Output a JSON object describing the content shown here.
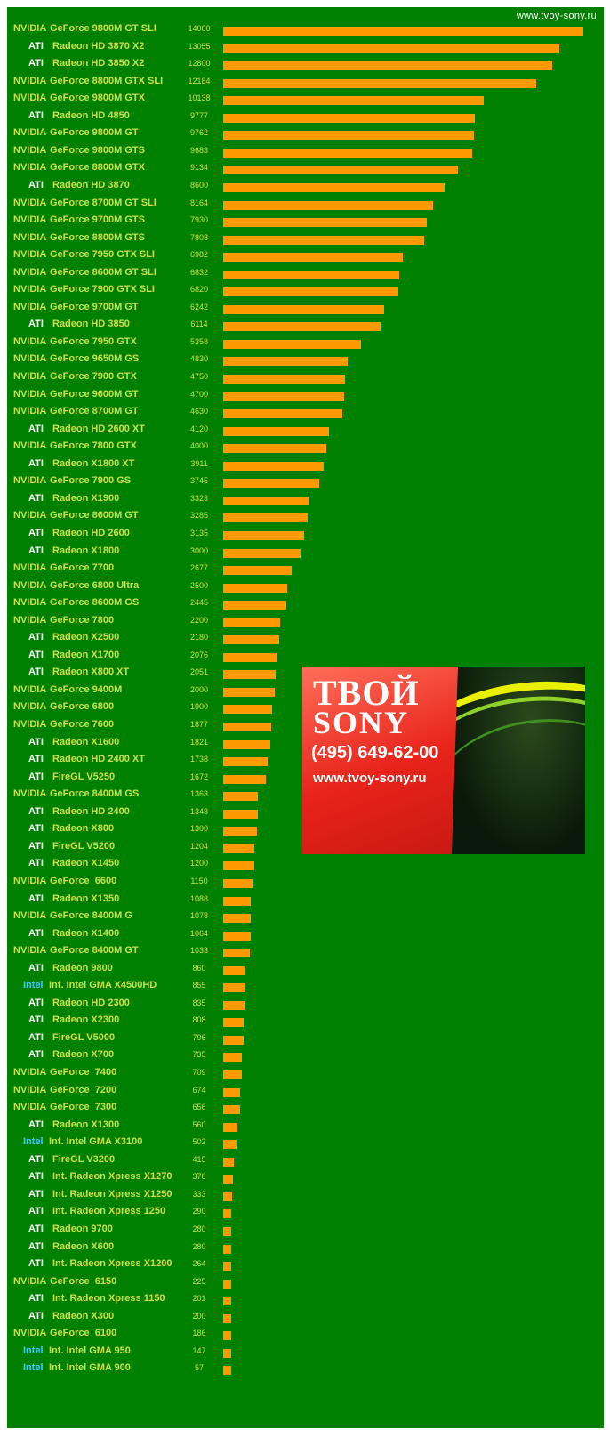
{
  "header": {
    "site": "www.tvoy-sony.ru"
  },
  "ad": {
    "brand_line1": "ТВОЙ",
    "brand_line2": "SONY",
    "phone": "(495) 649-62-00",
    "website": "www.tvoy-sony.ru"
  },
  "colors": {
    "background": "#008000",
    "bar": "#ff9900",
    "text": "#c9e04a",
    "ati": "#ffffff",
    "intel": "#3fc8ff",
    "nvidia": "#c9e04a"
  },
  "chart_data": {
    "type": "bar",
    "orientation": "horizontal",
    "xlim": [
      0,
      14000
    ],
    "categories": [
      "NVIDIA GeForce 9800M GT SLI",
      "ATI Radeon HD 3870 X2",
      "ATI Radeon HD 3850 X2",
      "NVIDIA GeForce 8800M GTX SLI",
      "NVIDIA GeForce 9800M GTX",
      "ATI Radeon HD 4850",
      "NVIDIA GeForce 9800M GT",
      "NVIDIA GeForce 9800M GTS",
      "NVIDIA GeForce 8800M GTX",
      "ATI Radeon HD 3870",
      "NVIDIA GeForce 8700M GT SLI",
      "NVIDIA GeForce 9700M GTS",
      "NVIDIA GeForce 8800M GTS",
      "NVIDIA GeForce 7950 GTX SLI",
      "NVIDIA GeForce 8600M GT SLI",
      "NVIDIA GeForce 7900 GTX SLI",
      "NVIDIA GeForce 9700M GT",
      "ATI Radeon HD 3850",
      "NVIDIA GeForce 7950 GTX",
      "NVIDIA GeForce 9650M GS",
      "NVIDIA GeForce 7900 GTX",
      "NVIDIA GeForce 9600M GT",
      "NVIDIA GeForce 8700M GT",
      "ATI Radeon HD 2600 XT",
      "NVIDIA GeForce 7800 GTX",
      "ATI Radeon X1800 XT",
      "NVIDIA GeForce 7900 GS",
      "ATI Radeon X1900",
      "NVIDIA GeForce 8600M GT",
      "ATI Radeon HD 2600",
      "ATI Radeon X1800",
      "NVIDIA GeForce 7700",
      "NVIDIA GeForce 6800 Ultra",
      "NVIDIA GeForce 8600M GS",
      "NVIDIA GeForce 7800",
      "ATI Radeon X2500",
      "ATI Radeon X1700",
      "ATI Radeon X800 XT",
      "NVIDIA GeForce 9400M",
      "NVIDIA GeForce 6800",
      "NVIDIA GeForce 7600",
      "ATI Radeon X1600",
      "ATI Radeon HD 2400 XT",
      "ATI FireGL V5250",
      "NVIDIA GeForce 8400M GS",
      "ATI Radeon HD 2400",
      "ATI Radeon X800",
      "ATI FireGL V5200",
      "ATI Radeon X1450",
      "NVIDIA GeForce 6600",
      "ATI Radeon X1350",
      "NVIDIA GeForce 8400M G",
      "ATI Radeon X1400",
      "NVIDIA GeForce 8400M GT",
      "ATI Radeon 9800",
      "Intel Int. Intel GMA X4500HD",
      "ATI Radeon HD 2300",
      "ATI Radeon X2300",
      "ATI FireGL V5000",
      "ATI Radeon X700",
      "NVIDIA GeForce 7400",
      "NVIDIA GeForce 7200",
      "NVIDIA GeForce 7300",
      "ATI Radeon X1300",
      "Intel Int. Intel GMA X3100",
      "ATI FireGL V3200",
      "ATI Int. Radeon Xpress X1270",
      "ATI Int. Radeon Xpress X1250",
      "ATI Int. Radeon Xpress 1250",
      "ATI Radeon 9700",
      "ATI Radeon X600",
      "ATI Int. Radeon Xpress X1200",
      "NVIDIA GeForce 6150",
      "ATI Int. Radeon Xpress 1150",
      "ATI Radeon X300",
      "NVIDIA GeForce 6100",
      "Intel Int. Intel GMA 950",
      "Intel Int. Intel GMA 900"
    ],
    "rows": [
      {
        "vendor": "NVIDIA",
        "model": "GeForce 9800M GT SLI",
        "value": 14000
      },
      {
        "vendor": "ATI",
        "model": "Radeon HD 3870 X2",
        "value": 13055
      },
      {
        "vendor": "ATI",
        "model": "Radeon HD 3850 X2",
        "value": 12800
      },
      {
        "vendor": "NVIDIA",
        "model": "GeForce 8800M GTX SLI",
        "value": 12184
      },
      {
        "vendor": "NVIDIA",
        "model": "GeForce 9800M GTX",
        "value": 10138
      },
      {
        "vendor": "ATI",
        "model": "Radeon HD 4850",
        "value": 9777
      },
      {
        "vendor": "NVIDIA",
        "model": "GeForce 9800M GT",
        "value": 9762
      },
      {
        "vendor": "NVIDIA",
        "model": "GeForce 9800M GTS",
        "value": 9683
      },
      {
        "vendor": "NVIDIA",
        "model": "GeForce 8800M GTX",
        "value": 9134
      },
      {
        "vendor": "ATI",
        "model": "Radeon HD 3870",
        "value": 8600
      },
      {
        "vendor": "NVIDIA",
        "model": "GeForce 8700M GT SLI",
        "value": 8164
      },
      {
        "vendor": "NVIDIA",
        "model": "GeForce 9700M GTS",
        "value": 7930
      },
      {
        "vendor": "NVIDIA",
        "model": "GeForce 8800M GTS",
        "value": 7808
      },
      {
        "vendor": "NVIDIA",
        "model": "GeForce 7950 GTX SLI",
        "value": 6982
      },
      {
        "vendor": "NVIDIA",
        "model": "GeForce 8600M GT SLI",
        "value": 6832
      },
      {
        "vendor": "NVIDIA",
        "model": "GeForce 7900 GTX SLI",
        "value": 6820
      },
      {
        "vendor": "NVIDIA",
        "model": "GeForce 9700M GT",
        "value": 6242
      },
      {
        "vendor": "ATI",
        "model": "Radeon HD 3850",
        "value": 6114
      },
      {
        "vendor": "NVIDIA",
        "model": "GeForce 7950 GTX",
        "value": 5358
      },
      {
        "vendor": "NVIDIA",
        "model": "GeForce 9650M GS",
        "value": 4830
      },
      {
        "vendor": "NVIDIA",
        "model": "GeForce 7900 GTX",
        "value": 4750
      },
      {
        "vendor": "NVIDIA",
        "model": "GeForce 9600M GT",
        "value": 4700
      },
      {
        "vendor": "NVIDIA",
        "model": "GeForce 8700M GT",
        "value": 4630
      },
      {
        "vendor": "ATI",
        "model": "Radeon HD 2600 XT",
        "value": 4120
      },
      {
        "vendor": "NVIDIA",
        "model": "GeForce 7800 GTX",
        "value": 4000
      },
      {
        "vendor": "ATI",
        "model": "Radeon X1800 XT",
        "value": 3911
      },
      {
        "vendor": "NVIDIA",
        "model": "GeForce 7900 GS",
        "value": 3745
      },
      {
        "vendor": "ATI",
        "model": "Radeon X1900",
        "value": 3323
      },
      {
        "vendor": "NVIDIA",
        "model": "GeForce 8600M GT",
        "value": 3285
      },
      {
        "vendor": "ATI",
        "model": "Radeon HD 2600",
        "value": 3135
      },
      {
        "vendor": "ATI",
        "model": "Radeon X1800",
        "value": 3000
      },
      {
        "vendor": "NVIDIA",
        "model": "GeForce 7700",
        "value": 2677
      },
      {
        "vendor": "NVIDIA",
        "model": "GeForce 6800 Ultra",
        "value": 2500
      },
      {
        "vendor": "NVIDIA",
        "model": "GeForce 8600M GS",
        "value": 2445
      },
      {
        "vendor": "NVIDIA",
        "model": "GeForce 7800",
        "value": 2200
      },
      {
        "vendor": "ATI",
        "model": "Radeon X2500",
        "value": 2180
      },
      {
        "vendor": "ATI",
        "model": "Radeon X1700",
        "value": 2076
      },
      {
        "vendor": "ATI",
        "model": "Radeon X800 XT",
        "value": 2051
      },
      {
        "vendor": "NVIDIA",
        "model": "GeForce 9400M",
        "value": 2000
      },
      {
        "vendor": "NVIDIA",
        "model": "GeForce 6800",
        "value": 1900
      },
      {
        "vendor": "NVIDIA",
        "model": "GeForce 7600",
        "value": 1877
      },
      {
        "vendor": "ATI",
        "model": "Radeon X1600",
        "value": 1821
      },
      {
        "vendor": "ATI",
        "model": "Radeon HD 2400 XT",
        "value": 1738
      },
      {
        "vendor": "ATI",
        "model": "FireGL V5250",
        "value": 1672
      },
      {
        "vendor": "NVIDIA",
        "model": "GeForce 8400M GS",
        "value": 1363
      },
      {
        "vendor": "ATI",
        "model": "Radeon HD 2400",
        "value": 1348
      },
      {
        "vendor": "ATI",
        "model": "Radeon X800",
        "value": 1300
      },
      {
        "vendor": "ATI",
        "model": "FireGL V5200",
        "value": 1204
      },
      {
        "vendor": "ATI",
        "model": "Radeon X1450",
        "value": 1200
      },
      {
        "vendor": "NVIDIA",
        "model": "GeForce  6600",
        "value": 1150
      },
      {
        "vendor": "ATI",
        "model": "Radeon X1350",
        "value": 1088
      },
      {
        "vendor": "NVIDIA",
        "model": "GeForce 8400M G",
        "value": 1078
      },
      {
        "vendor": "ATI",
        "model": "Radeon X1400",
        "value": 1064
      },
      {
        "vendor": "NVIDIA",
        "model": "GeForce 8400M GT",
        "value": 1033
      },
      {
        "vendor": "ATI",
        "model": "Radeon 9800",
        "value": 860
      },
      {
        "vendor": "Intel",
        "model": "Int. Intel GMA X4500HD",
        "value": 855
      },
      {
        "vendor": "ATI",
        "model": "Radeon HD 2300",
        "value": 835
      },
      {
        "vendor": "ATI",
        "model": "Radeon X2300",
        "value": 808
      },
      {
        "vendor": "ATI",
        "model": "FireGL V5000",
        "value": 796
      },
      {
        "vendor": "ATI",
        "model": "Radeon X700",
        "value": 735
      },
      {
        "vendor": "NVIDIA",
        "model": "GeForce  7400",
        "value": 709
      },
      {
        "vendor": "NVIDIA",
        "model": "GeForce  7200",
        "value": 674
      },
      {
        "vendor": "NVIDIA",
        "model": "GeForce  7300",
        "value": 656
      },
      {
        "vendor": "ATI",
        "model": "Radeon X1300",
        "value": 560
      },
      {
        "vendor": "Intel",
        "model": "Int. Intel GMA X3100",
        "value": 502
      },
      {
        "vendor": "ATI",
        "model": "FireGL V3200",
        "value": 415
      },
      {
        "vendor": "ATI",
        "model": "Int. Radeon Xpress X1270",
        "value": 370
      },
      {
        "vendor": "ATI",
        "model": "Int. Radeon Xpress X1250",
        "value": 333
      },
      {
        "vendor": "ATI",
        "model": "Int. Radeon Xpress 1250",
        "value": 290
      },
      {
        "vendor": "ATI",
        "model": "Radeon 9700",
        "value": 280
      },
      {
        "vendor": "ATI",
        "model": "Radeon X600",
        "value": 280
      },
      {
        "vendor": "ATI",
        "model": "Int. Radeon Xpress X1200",
        "value": 264
      },
      {
        "vendor": "NVIDIA",
        "model": "GeForce  6150",
        "value": 225
      },
      {
        "vendor": "ATI",
        "model": "Int. Radeon Xpress 1150",
        "value": 201
      },
      {
        "vendor": "ATI",
        "model": "Radeon X300",
        "value": 200
      },
      {
        "vendor": "NVIDIA",
        "model": "GeForce  6100",
        "value": 186
      },
      {
        "vendor": "Intel",
        "model": "Int. Intel GMA 950",
        "value": 147
      },
      {
        "vendor": "Intel",
        "model": "Int. Intel GMA 900",
        "value": 57
      }
    ]
  }
}
